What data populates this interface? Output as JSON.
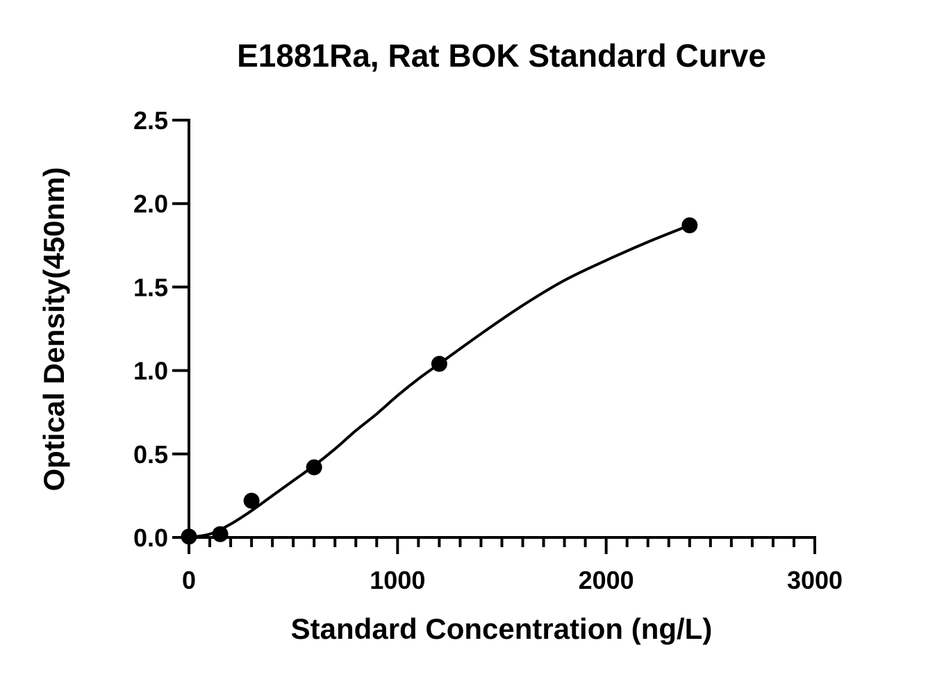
{
  "chart_data": {
    "type": "scatter",
    "title": "E1881Ra, Rat BOK Standard Curve",
    "xlabel": "Standard Concentration (ng/L)",
    "ylabel": "Optical Density(450nm)",
    "xlim": [
      0,
      3000
    ],
    "ylim": [
      0,
      2.5
    ],
    "x_ticks": [
      0,
      1000,
      2000,
      3000
    ],
    "x_tick_labels": [
      "0",
      "1000",
      "2000",
      "3000"
    ],
    "x_minor_step": 100,
    "y_ticks": [
      0,
      0.5,
      1.0,
      1.5,
      2.0,
      2.5
    ],
    "y_tick_labels": [
      "0.0",
      "0.5",
      "1.0",
      "1.5",
      "2.0",
      "2.5"
    ],
    "grid": false,
    "legend": "none",
    "series": [
      {
        "x": [
          0,
          150,
          300,
          600,
          1200,
          2400
        ],
        "y": [
          0.005,
          0.02,
          0.22,
          0.42,
          1.04,
          1.87
        ],
        "color": "#000000",
        "marker": "circle"
      }
    ],
    "fit_curve": {
      "type": "4PL",
      "x": [
        0,
        100,
        200,
        300,
        400,
        500,
        600,
        700,
        800,
        900,
        1000,
        1100,
        1200,
        1400,
        1600,
        1800,
        2000,
        2200,
        2400
      ],
      "y": [
        0.0,
        0.02,
        0.08,
        0.16,
        0.25,
        0.34,
        0.43,
        0.53,
        0.64,
        0.74,
        0.85,
        0.95,
        1.04,
        1.22,
        1.39,
        1.54,
        1.66,
        1.77,
        1.87
      ],
      "color": "#000000"
    }
  }
}
